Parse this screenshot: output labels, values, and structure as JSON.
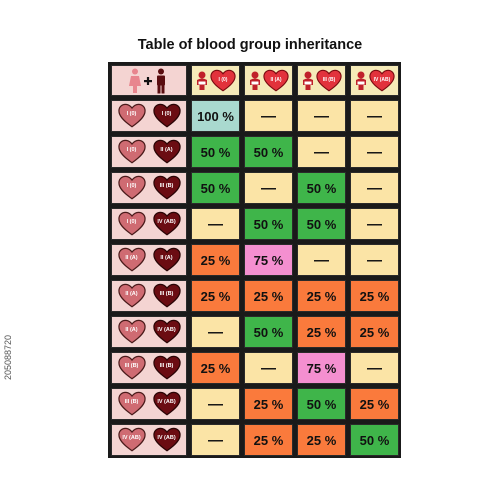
{
  "title": "Table of blood group inheritance",
  "side_id": "205088720",
  "corner_icon": "parents-icon",
  "columns": [
    {
      "label": "I (0)"
    },
    {
      "label": "II (A)"
    },
    {
      "label": "III (B)"
    },
    {
      "label": "IV (AB)"
    }
  ],
  "rows": [
    {
      "p1": "I (0)",
      "p2": "I (0)",
      "cells": [
        {
          "text": "100 %",
          "color": "#a9d9cf"
        },
        {
          "text": "—",
          "color": "#fbe4a6"
        },
        {
          "text": "—",
          "color": "#fbe4a6"
        },
        {
          "text": "—",
          "color": "#fbe4a6"
        }
      ]
    },
    {
      "p1": "I (0)",
      "p2": "II (A)",
      "cells": [
        {
          "text": "50 %",
          "color": "#3fb54a"
        },
        {
          "text": "50 %",
          "color": "#3fb54a"
        },
        {
          "text": "—",
          "color": "#fbe4a6"
        },
        {
          "text": "—",
          "color": "#fbe4a6"
        }
      ]
    },
    {
      "p1": "I (0)",
      "p2": "III (B)",
      "cells": [
        {
          "text": "50 %",
          "color": "#3fb54a"
        },
        {
          "text": "—",
          "color": "#fbe4a6"
        },
        {
          "text": "50 %",
          "color": "#3fb54a"
        },
        {
          "text": "—",
          "color": "#fbe4a6"
        }
      ]
    },
    {
      "p1": "I (0)",
      "p2": "IV (AB)",
      "cells": [
        {
          "text": "—",
          "color": "#fbe4a6"
        },
        {
          "text": "50 %",
          "color": "#3fb54a"
        },
        {
          "text": "50 %",
          "color": "#3fb54a"
        },
        {
          "text": "—",
          "color": "#fbe4a6"
        }
      ]
    },
    {
      "p1": "II (A)",
      "p2": "II (A)",
      "cells": [
        {
          "text": "25 %",
          "color": "#fa7a3c"
        },
        {
          "text": "75 %",
          "color": "#f48fd0"
        },
        {
          "text": "—",
          "color": "#fbe4a6"
        },
        {
          "text": "—",
          "color": "#fbe4a6"
        }
      ]
    },
    {
      "p1": "II (A)",
      "p2": "III (B)",
      "cells": [
        {
          "text": "25 %",
          "color": "#fa7a3c"
        },
        {
          "text": "25 %",
          "color": "#fa7a3c"
        },
        {
          "text": "25 %",
          "color": "#fa7a3c"
        },
        {
          "text": "25 %",
          "color": "#fa7a3c"
        }
      ]
    },
    {
      "p1": "II (A)",
      "p2": "IV (AB)",
      "cells": [
        {
          "text": "—",
          "color": "#fbe4a6"
        },
        {
          "text": "50 %",
          "color": "#3fb54a"
        },
        {
          "text": "25 %",
          "color": "#fa7a3c"
        },
        {
          "text": "25 %",
          "color": "#fa7a3c"
        }
      ]
    },
    {
      "p1": "III (B)",
      "p2": "III (B)",
      "cells": [
        {
          "text": "25 %",
          "color": "#fa7a3c"
        },
        {
          "text": "—",
          "color": "#fbe4a6"
        },
        {
          "text": "75 %",
          "color": "#f48fd0"
        },
        {
          "text": "—",
          "color": "#fbe4a6"
        }
      ]
    },
    {
      "p1": "III (B)",
      "p2": "IV (AB)",
      "cells": [
        {
          "text": "—",
          "color": "#fbe4a6"
        },
        {
          "text": "25 %",
          "color": "#fa7a3c"
        },
        {
          "text": "50 %",
          "color": "#3fb54a"
        },
        {
          "text": "25 %",
          "color": "#fa7a3c"
        }
      ]
    },
    {
      "p1": "IV (AB)",
      "p2": "IV (AB)",
      "cells": [
        {
          "text": "—",
          "color": "#fbe4a6"
        },
        {
          "text": "25 %",
          "color": "#fa7a3c"
        },
        {
          "text": "25 %",
          "color": "#fa7a3c"
        },
        {
          "text": "50 %",
          "color": "#3fb54a"
        }
      ]
    }
  ],
  "colors": {
    "heart_light": "#cf6b72",
    "heart_dark": "#6b0c12",
    "header_heart": "#e2323c",
    "parent_female": "#e8858e",
    "parent_male": "#5a0d10"
  }
}
